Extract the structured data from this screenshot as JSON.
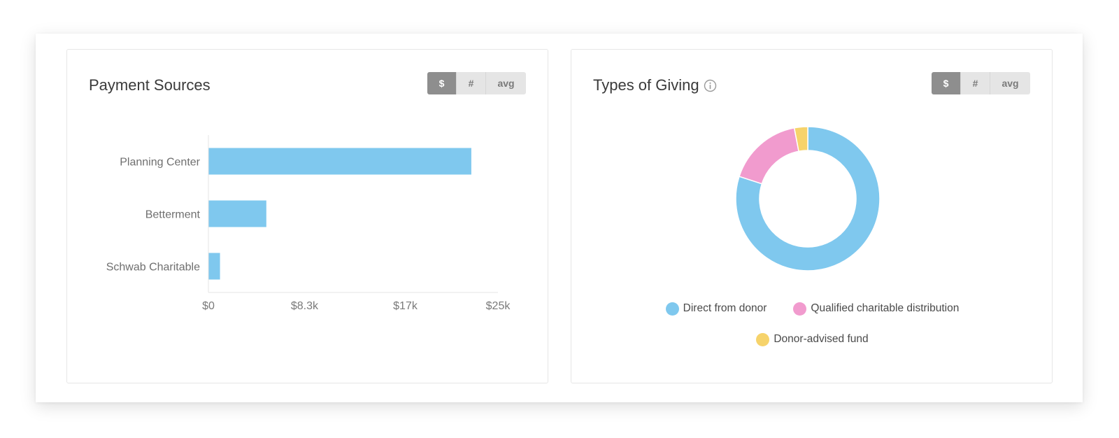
{
  "colors": {
    "blue": "#7fc8ee",
    "pink": "#f19bce",
    "yellow": "#f6d36b",
    "toggle_active": "#8e8e8e",
    "toggle_inactive": "#e5e5e5"
  },
  "payment_sources": {
    "title": "Payment Sources",
    "toggle": [
      {
        "label": "$",
        "active": true
      },
      {
        "label": "#",
        "active": false
      },
      {
        "label": "avg",
        "active": false
      }
    ]
  },
  "types_of_giving": {
    "title": "Types of Giving",
    "info_icon": "info-circle-icon",
    "toggle": [
      {
        "label": "$",
        "active": true
      },
      {
        "label": "#",
        "active": false
      },
      {
        "label": "avg",
        "active": false
      }
    ],
    "legend": [
      {
        "label": "Direct from donor",
        "color": "#7fc8ee"
      },
      {
        "label": "Qualified charitable distribution",
        "color": "#f19bce"
      },
      {
        "label": "Donor-advised fund",
        "color": "#f6d36b"
      }
    ]
  },
  "chart_data": [
    {
      "type": "bar",
      "orientation": "horizontal",
      "title": "Payment Sources",
      "categories": [
        "Planning Center",
        "Betterment",
        "Schwab Charitable"
      ],
      "values": [
        22700,
        5000,
        1000
      ],
      "xlim": [
        0,
        25000
      ],
      "xticks": [
        0,
        8300,
        17000,
        25000
      ],
      "xtick_labels": [
        "$0",
        "$8.3k",
        "$17k",
        "$25k"
      ],
      "color": "#7fc8ee",
      "grid": false
    },
    {
      "type": "pie",
      "donut": true,
      "title": "Types of Giving",
      "categories": [
        "Direct from donor",
        "Qualified charitable distribution",
        "Donor-advised fund"
      ],
      "values": [
        80,
        17,
        3
      ],
      "colors": [
        "#7fc8ee",
        "#f19bce",
        "#f6d36b"
      ],
      "legend": "bottom"
    }
  ]
}
